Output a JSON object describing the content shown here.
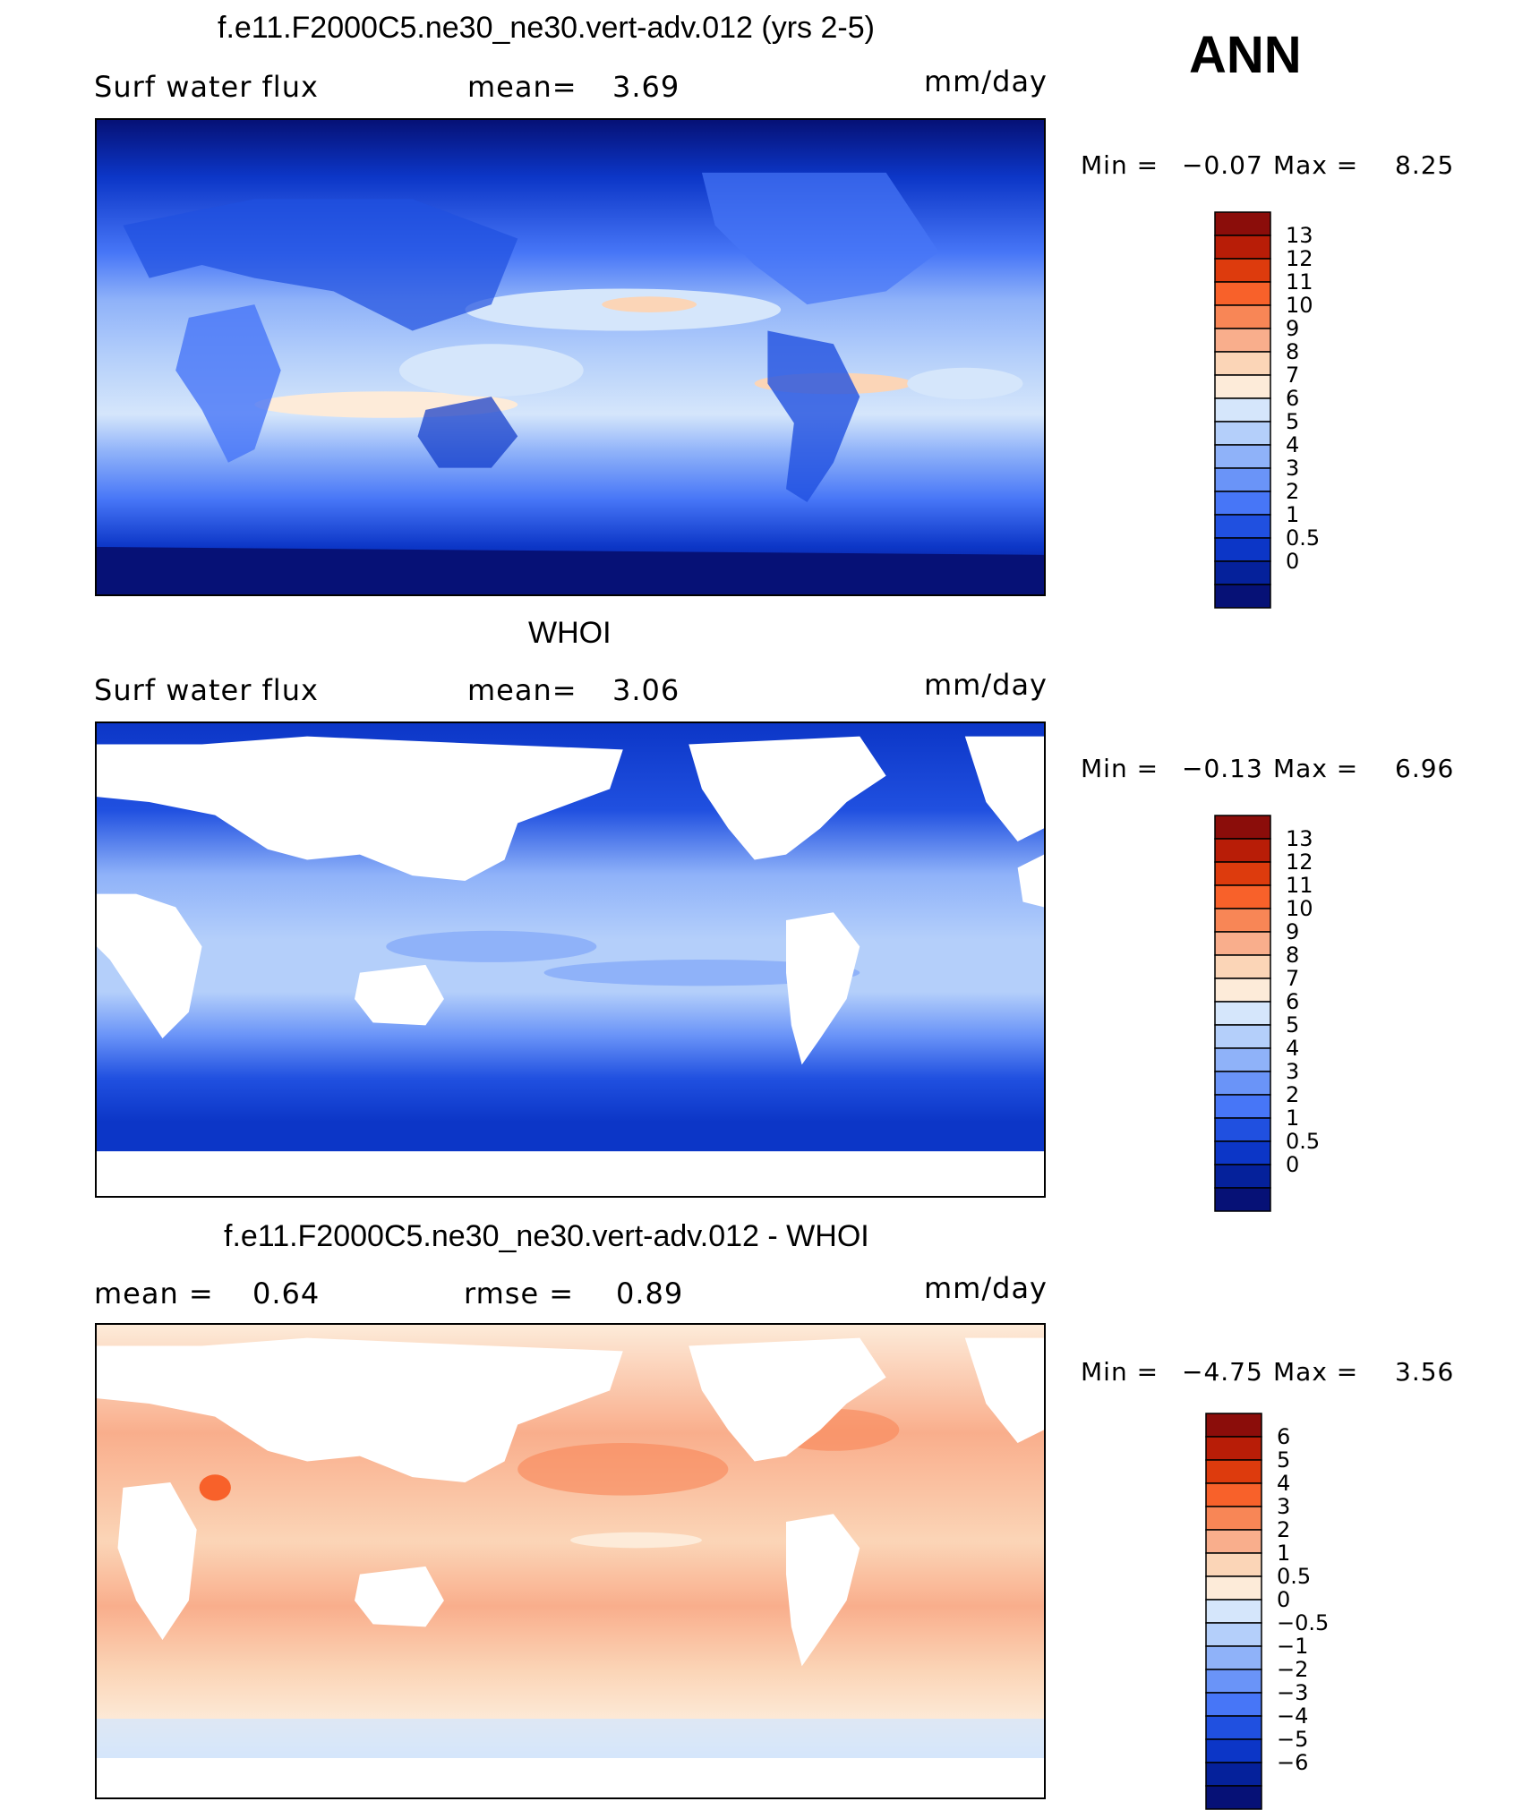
{
  "season": "ANN",
  "panels": [
    {
      "title": "f.e11.F2000C5.ne30_ne30.vert-adv.012 (yrs 2-5)",
      "variable": "Surf water flux",
      "mean_label": "mean=",
      "mean_value": "3.69",
      "units": "mm/day",
      "min_label": "Min =",
      "min_value": "−0.07",
      "max_label": "Max =",
      "max_value": "8.25",
      "colorbar": {
        "ticks": [
          "13",
          "12",
          "11",
          "10",
          "9",
          "8",
          "7",
          "6",
          "5",
          "4",
          "3",
          "2",
          "1",
          "0.5",
          "0"
        ],
        "colors": [
          "#8b0d0a",
          "#b81d07",
          "#dd3b0d",
          "#f8612a",
          "#f88656",
          "#f9ae8c",
          "#fbd5b7",
          "#fdebd9",
          "#d5e6fb",
          "#b4cffa",
          "#8fb2f9",
          "#6a94f8",
          "#4776f7",
          "#2050e0",
          "#0c36c7",
          "#05219b",
          "#061176"
        ]
      },
      "map_fill": "ocean_and_land"
    },
    {
      "title": "WHOI",
      "variable": "Surf water flux",
      "mean_label": "mean=",
      "mean_value": "3.06",
      "units": "mm/day",
      "min_label": "Min =",
      "min_value": "−0.13",
      "max_label": "Max =",
      "max_value": "6.96",
      "colorbar": {
        "ticks": [
          "13",
          "12",
          "11",
          "10",
          "9",
          "8",
          "7",
          "6",
          "5",
          "4",
          "3",
          "2",
          "1",
          "0.5",
          "0"
        ],
        "colors": [
          "#8b0d0a",
          "#b81d07",
          "#dd3b0d",
          "#f8612a",
          "#f88656",
          "#f9ae8c",
          "#fbd5b7",
          "#fdebd9",
          "#d5e6fb",
          "#b4cffa",
          "#8fb2f9",
          "#6a94f8",
          "#4776f7",
          "#2050e0",
          "#0c36c7",
          "#05219b",
          "#061176"
        ]
      },
      "map_fill": "ocean_only"
    },
    {
      "title": "f.e11.F2000C5.ne30_ne30.vert-adv.012 - WHOI",
      "mean_label": "mean =",
      "mean_value": "0.64",
      "rmse_label": "rmse =",
      "rmse_value": "0.89",
      "units": "mm/day",
      "min_label": "Min =",
      "min_value": "−4.75",
      "max_label": "Max =",
      "max_value": "3.56",
      "colorbar": {
        "ticks": [
          "6",
          "5",
          "4",
          "3",
          "2",
          "1",
          "0.5",
          "0",
          "−0.5",
          "−1",
          "−2",
          "−3",
          "−4",
          "−5",
          "−6"
        ],
        "colors": [
          "#8b0d0a",
          "#b81d07",
          "#dd3b0d",
          "#f8612a",
          "#f88656",
          "#f9ae8c",
          "#fbd5b7",
          "#fdebd9",
          "#d5e6fb",
          "#b4cffa",
          "#8fb2f9",
          "#6a94f8",
          "#4776f7",
          "#2050e0",
          "#0c36c7",
          "#05219b",
          "#061176"
        ]
      },
      "map_fill": "difference"
    }
  ]
}
